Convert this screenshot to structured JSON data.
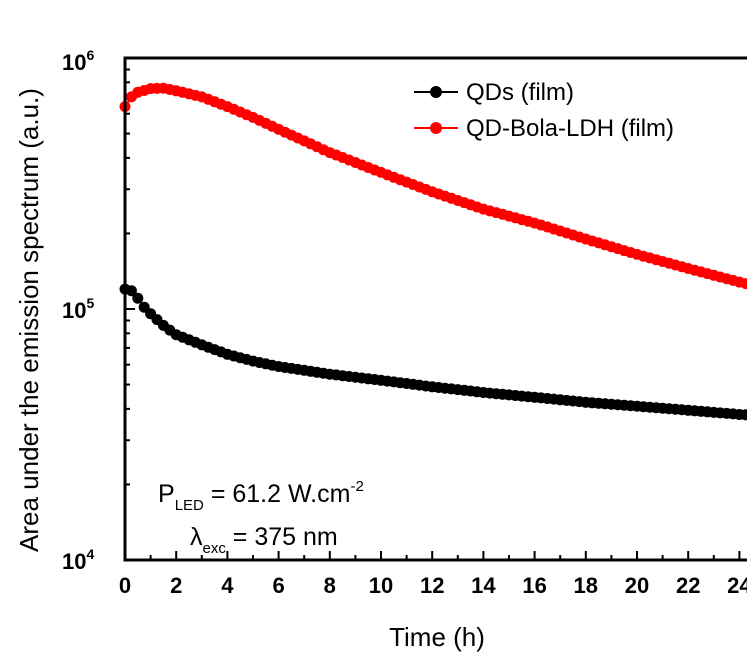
{
  "chart_data": {
    "type": "scatter",
    "title": "",
    "xlabel": "Time (h)",
    "ylabel": "Area under the emission spectrum (a.u.)",
    "xlim": [
      0,
      25
    ],
    "ylim": [
      10000,
      1000000
    ],
    "yscale": "log",
    "xticks": [
      "0",
      "2",
      "4",
      "6",
      "8",
      "10",
      "12",
      "14",
      "16",
      "18",
      "20",
      "22",
      "24"
    ],
    "yticks": [
      {
        "base": "10",
        "exp": "4"
      },
      {
        "base": "10",
        "exp": "5"
      },
      {
        "base": "10",
        "exp": "6"
      }
    ],
    "legend_position": "top-right",
    "series": [
      {
        "name": "QDs (film)",
        "color": "#000000",
        "keypoints": [
          [
            0,
            120000
          ],
          [
            0.3,
            118000
          ],
          [
            0.8,
            100000
          ],
          [
            1.5,
            86000
          ],
          [
            2,
            79000
          ],
          [
            3,
            72000
          ],
          [
            4,
            66000
          ],
          [
            5,
            62000
          ],
          [
            6,
            59000
          ],
          [
            8,
            55000
          ],
          [
            10,
            52000
          ],
          [
            12,
            49000
          ],
          [
            14,
            46500
          ],
          [
            16,
            44500
          ],
          [
            18,
            42500
          ],
          [
            20,
            41000
          ],
          [
            22,
            39500
          ],
          [
            24,
            38000
          ],
          [
            25,
            37500
          ]
        ]
      },
      {
        "name": "QD-Bola-LDH (film)",
        "color": "#ff0000",
        "keypoints": [
          [
            0,
            640000
          ],
          [
            0.25,
            700000
          ],
          [
            0.5,
            730000
          ],
          [
            1,
            755000
          ],
          [
            1.5,
            758000
          ],
          [
            2,
            740000
          ],
          [
            3,
            700000
          ],
          [
            4,
            640000
          ],
          [
            5,
            580000
          ],
          [
            6,
            520000
          ],
          [
            8,
            420000
          ],
          [
            10,
            350000
          ],
          [
            12,
            293000
          ],
          [
            14,
            250000
          ],
          [
            16,
            220000
          ],
          [
            18,
            190000
          ],
          [
            20,
            165000
          ],
          [
            22,
            145000
          ],
          [
            24,
            128000
          ],
          [
            25,
            121000
          ]
        ]
      }
    ]
  },
  "annotations": {
    "power": {
      "prefix": "P",
      "sub": "LED",
      "value": " = 61.2 W.cm",
      "sup": "-2"
    },
    "wavelength": {
      "prefix": "λ",
      "sub": "exc",
      "value": " = 375 nm"
    }
  }
}
